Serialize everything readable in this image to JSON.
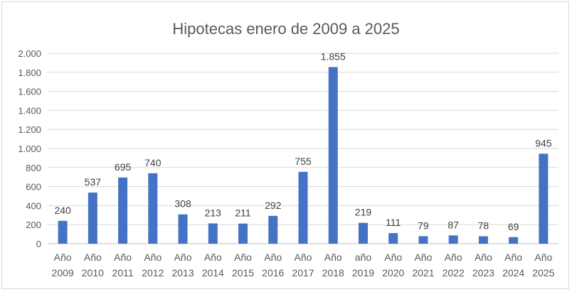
{
  "chart_data": {
    "type": "bar",
    "title": "Hipotecas enero de 2009 a 2025",
    "xlabel": "",
    "ylabel": "",
    "ylim": [
      0,
      2000
    ],
    "yticks": [
      0,
      200,
      400,
      600,
      800,
      1000,
      1200,
      1400,
      1600,
      1800,
      2000
    ],
    "ytick_labels": [
      "0",
      "200",
      "400",
      "600",
      "800",
      "1.000",
      "1.200",
      "1.400",
      "1.600",
      "1.800",
      "2.000"
    ],
    "grid": true,
    "legend": "none",
    "bar_color": "#4472c4",
    "categories": [
      [
        "Año",
        "2009"
      ],
      [
        "Año",
        "2010"
      ],
      [
        "Año",
        "2011"
      ],
      [
        "Año",
        "2012"
      ],
      [
        "Año",
        "2013"
      ],
      [
        "Año",
        "2014"
      ],
      [
        "Año",
        "2015"
      ],
      [
        "Año",
        "2016"
      ],
      [
        "Año",
        "2017"
      ],
      [
        "Año",
        "2018"
      ],
      [
        "año",
        "2019"
      ],
      [
        "Año",
        "2020"
      ],
      [
        "Año",
        "2021"
      ],
      [
        "Año",
        "2022"
      ],
      [
        "Año",
        "2023"
      ],
      [
        "Año",
        "2024"
      ],
      [
        "Año",
        "2025"
      ]
    ],
    "values": [
      240,
      537,
      695,
      740,
      308,
      213,
      211,
      292,
      755,
      1855,
      219,
      111,
      79,
      87,
      78,
      69,
      945
    ],
    "value_labels": [
      "240",
      "537",
      "695",
      "740",
      "308",
      "213",
      "211",
      "292",
      "755",
      "1.855",
      "219",
      "111",
      "79",
      "87",
      "78",
      "69",
      "945"
    ]
  }
}
